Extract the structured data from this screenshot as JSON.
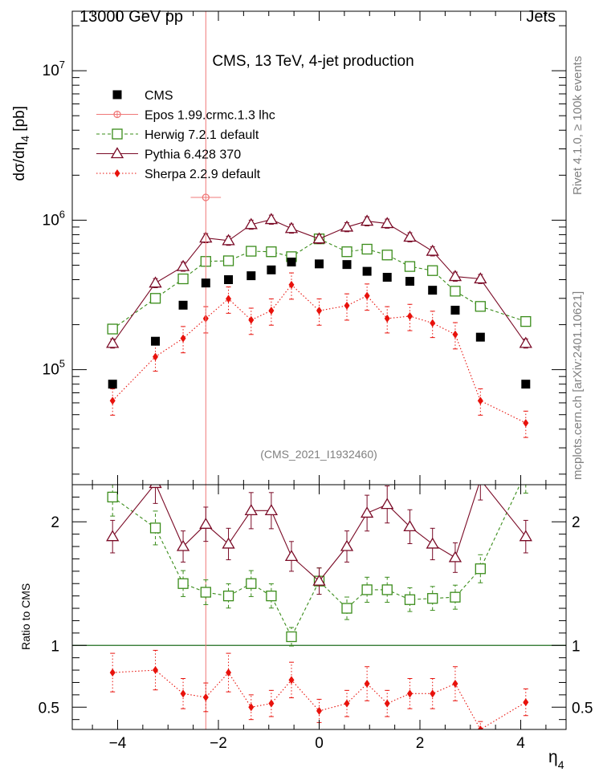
{
  "header": {
    "left": "13000 GeV pp",
    "right": "Jets"
  },
  "side_text": {
    "rivet": "Rivet 4.1.0, ≥ 100k events",
    "mcplots": "mcplots.cern.ch [arXiv:2401.10621]"
  },
  "chart_data": {
    "type": "scatter",
    "title": "CMS, 13 TeV, 4-jet production",
    "analysis_id": "(CMS_2021_I1932460)",
    "xlabel_main": "η",
    "xlabel_sub": "4",
    "ylabel_main": "dσ/dη",
    "ylabel_sub": "4",
    "ylabel_unit": " [pb]",
    "ratio_ylabel": "Ratio to CMS",
    "x_range": [
      -4.9,
      4.9
    ],
    "x_ticks": [
      -4,
      -2,
      0,
      2,
      4
    ],
    "x_tick_labels": [
      "−4",
      "−2",
      "0",
      "2",
      "4"
    ],
    "main_yscale": "log",
    "main_ylim": [
      17000,
      25000000
    ],
    "main_y_tick_labels": [
      {
        "value": 100000,
        "base": "10",
        "exp": "5"
      },
      {
        "value": 1000000,
        "base": "10",
        "exp": "6"
      },
      {
        "value": 10000000,
        "base": "10",
        "exp": "7"
      }
    ],
    "ratio_ylim": [
      0.32,
      2.3
    ],
    "ratio_y_tick_labels": [
      {
        "value": 0.5,
        "label": "0.5"
      },
      {
        "value": 1,
        "label": "1"
      },
      {
        "value": 2,
        "label": "2"
      }
    ],
    "legend_position": "top-left",
    "series": [
      {
        "name": "CMS",
        "color": "#000000",
        "marker": "filled-square",
        "line": "none",
        "x": [
          -4.1,
          -3.25,
          -2.7,
          -2.25,
          -1.8,
          -1.35,
          -0.95,
          -0.55,
          0,
          0.55,
          0.95,
          1.35,
          1.8,
          2.25,
          2.7,
          3.2,
          4.1
        ],
        "y": [
          80000,
          155000,
          270000,
          380000,
          400000,
          425000,
          465000,
          525000,
          510000,
          505000,
          455000,
          415000,
          390000,
          340000,
          250000,
          165000,
          80000
        ],
        "ratio": null
      },
      {
        "name": "Epos 1.99.crmc.1.3 lhc",
        "color": "#f07878",
        "marker": "open-circle-cross",
        "line": "solid",
        "x": [
          -2.25
        ],
        "y": [
          1420000
        ],
        "xerr": 0.3,
        "yerr_low": 1400000,
        "yerr_high": 30000000,
        "ratio": null
      },
      {
        "name": "Herwig 7.2.1 default",
        "color": "#3a8c1a",
        "marker": "open-square",
        "line": "dashed",
        "x": [
          -4.1,
          -3.25,
          -2.7,
          -2.25,
          -1.8,
          -1.35,
          -0.95,
          -0.55,
          0,
          0.55,
          0.95,
          1.35,
          1.8,
          2.25,
          2.7,
          3.2,
          4.1
        ],
        "y": [
          187000,
          300000,
          405000,
          530000,
          535000,
          620000,
          615000,
          570000,
          750000,
          615000,
          640000,
          585000,
          490000,
          460000,
          335000,
          265000,
          210000
        ],
        "ratio": [
          2.2,
          1.95,
          1.5,
          1.43,
          1.4,
          1.5,
          1.4,
          1.07,
          1.52,
          1.3,
          1.45,
          1.45,
          1.37,
          1.38,
          1.39,
          1.62,
          2.4
        ],
        "rel_err": 0.07
      },
      {
        "name": "Pythia 6.428 370",
        "color": "#7a0a26",
        "marker": "open-triangle",
        "line": "solid",
        "x": [
          -4.1,
          -3.25,
          -2.7,
          -2.25,
          -1.8,
          -1.35,
          -0.95,
          -0.55,
          0,
          0.55,
          0.95,
          1.35,
          1.8,
          2.25,
          2.7,
          3.2,
          4.1
        ],
        "y": [
          150000,
          380000,
          490000,
          760000,
          730000,
          935000,
          1010000,
          880000,
          750000,
          900000,
          985000,
          950000,
          770000,
          620000,
          420000,
          405000,
          150000
        ],
        "ratio": [
          1.88,
          2.31,
          1.8,
          1.98,
          1.82,
          2.09,
          2.09,
          1.72,
          1.52,
          1.8,
          2.07,
          2.14,
          1.96,
          1.82,
          1.71,
          2.34,
          1.88
        ],
        "rel_err": 0.07
      },
      {
        "name": "Sherpa 2.2.9 default",
        "color": "#e8120c",
        "marker": "filled-diamond",
        "line": "dotted",
        "x": [
          -4.1,
          -3.25,
          -2.7,
          -2.25,
          -1.8,
          -1.35,
          -0.95,
          -0.55,
          0,
          0.55,
          0.95,
          1.35,
          1.8,
          2.25,
          2.7,
          3.2,
          4.1
        ],
        "y": [
          62000,
          122000,
          162000,
          220000,
          298000,
          215000,
          248000,
          370000,
          248000,
          268000,
          312000,
          220000,
          228000,
          205000,
          172000,
          62000,
          44000
        ],
        "ratio": [
          0.78,
          0.8,
          0.61,
          0.58,
          0.78,
          0.5,
          0.53,
          0.72,
          0.47,
          0.53,
          0.69,
          0.53,
          0.61,
          0.61,
          0.69,
          0.32,
          0.54
        ],
        "rel_err": 0.2
      }
    ]
  }
}
